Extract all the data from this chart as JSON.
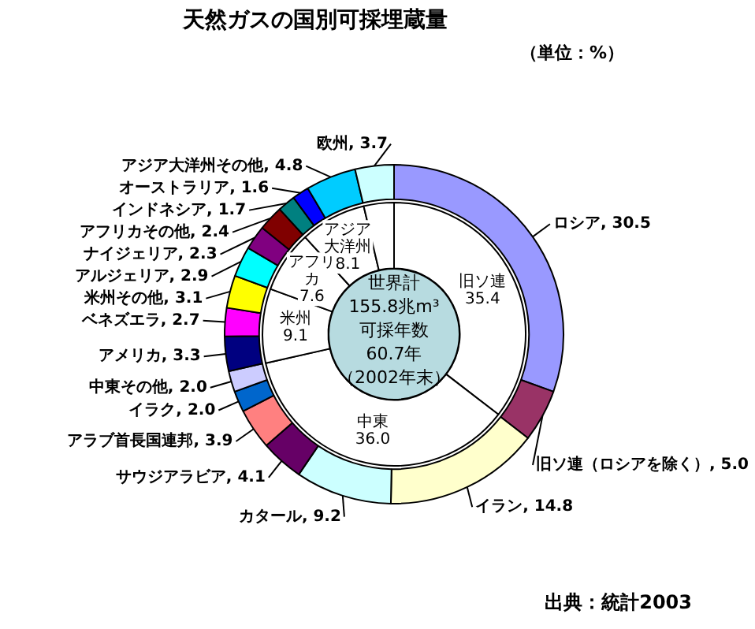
{
  "chart_data": [
    {
      "type": "donut",
      "title": "天然ガスの国別可採埋蔵量",
      "subtitle": "（単位：%）",
      "legend": false,
      "categories": [
        "ロシア",
        "旧ソ連（ロシアを除く）",
        "イラン",
        "カタール",
        "サウジアラビア",
        "アラブ首長国連邦",
        "イラク",
        "中東その他",
        "アメリカ",
        "ベネズエラ",
        "米州その他",
        "アルジェリア",
        "ナイジェリア",
        "アフリカその他",
        "インドネシア",
        "オーストラリア",
        "アジア大洋州その他",
        "欧州"
      ],
      "values": [
        30.5,
        5.0,
        14.8,
        9.2,
        4.1,
        3.9,
        2.0,
        2.0,
        3.3,
        2.7,
        3.1,
        2.9,
        2.3,
        2.4,
        1.7,
        1.6,
        4.8,
        3.7
      ],
      "value_labels": [
        "30.5",
        "5.0",
        "14.8",
        "9.2",
        "4.1",
        "3.9",
        "2.0",
        "2.0",
        "3.3",
        "2.7",
        "3.1",
        "2.9",
        "2.3",
        "2.4",
        "1.7",
        "1.6",
        "4.8",
        "3.7"
      ],
      "colors": [
        "#9999ff",
        "#993366",
        "#ffffcc",
        "#ccffff",
        "#660066",
        "#ff8080",
        "#0066cc",
        "#ccccff",
        "#000080",
        "#ff00ff",
        "#ffff00",
        "#00ffff",
        "#800080",
        "#800000",
        "#008080",
        "#0000ff",
        "#00ccff",
        "#ccffff"
      ],
      "annotations": [
        "出典：統計2003"
      ]
    },
    {
      "type": "donut",
      "legend": false,
      "categories": [
        "旧ソ連",
        "中東",
        "米州",
        "アフリカ",
        "アジア大洋州",
        null
      ],
      "values": [
        35.4,
        36.0,
        9.1,
        7.6,
        8.1,
        3.7
      ],
      "value_labels": [
        "35.4",
        "36.0",
        "9.1",
        "7.6",
        "8.1",
        null
      ],
      "colors": [
        "#ffffff",
        "#ffffff",
        "#ffffff",
        "#ffffff",
        "#ffffff",
        "#ffffff"
      ],
      "annotations": [
        "世界計",
        "155.8兆m³",
        "可採年数",
        "60.7年",
        "（2002年末）"
      ]
    }
  ]
}
